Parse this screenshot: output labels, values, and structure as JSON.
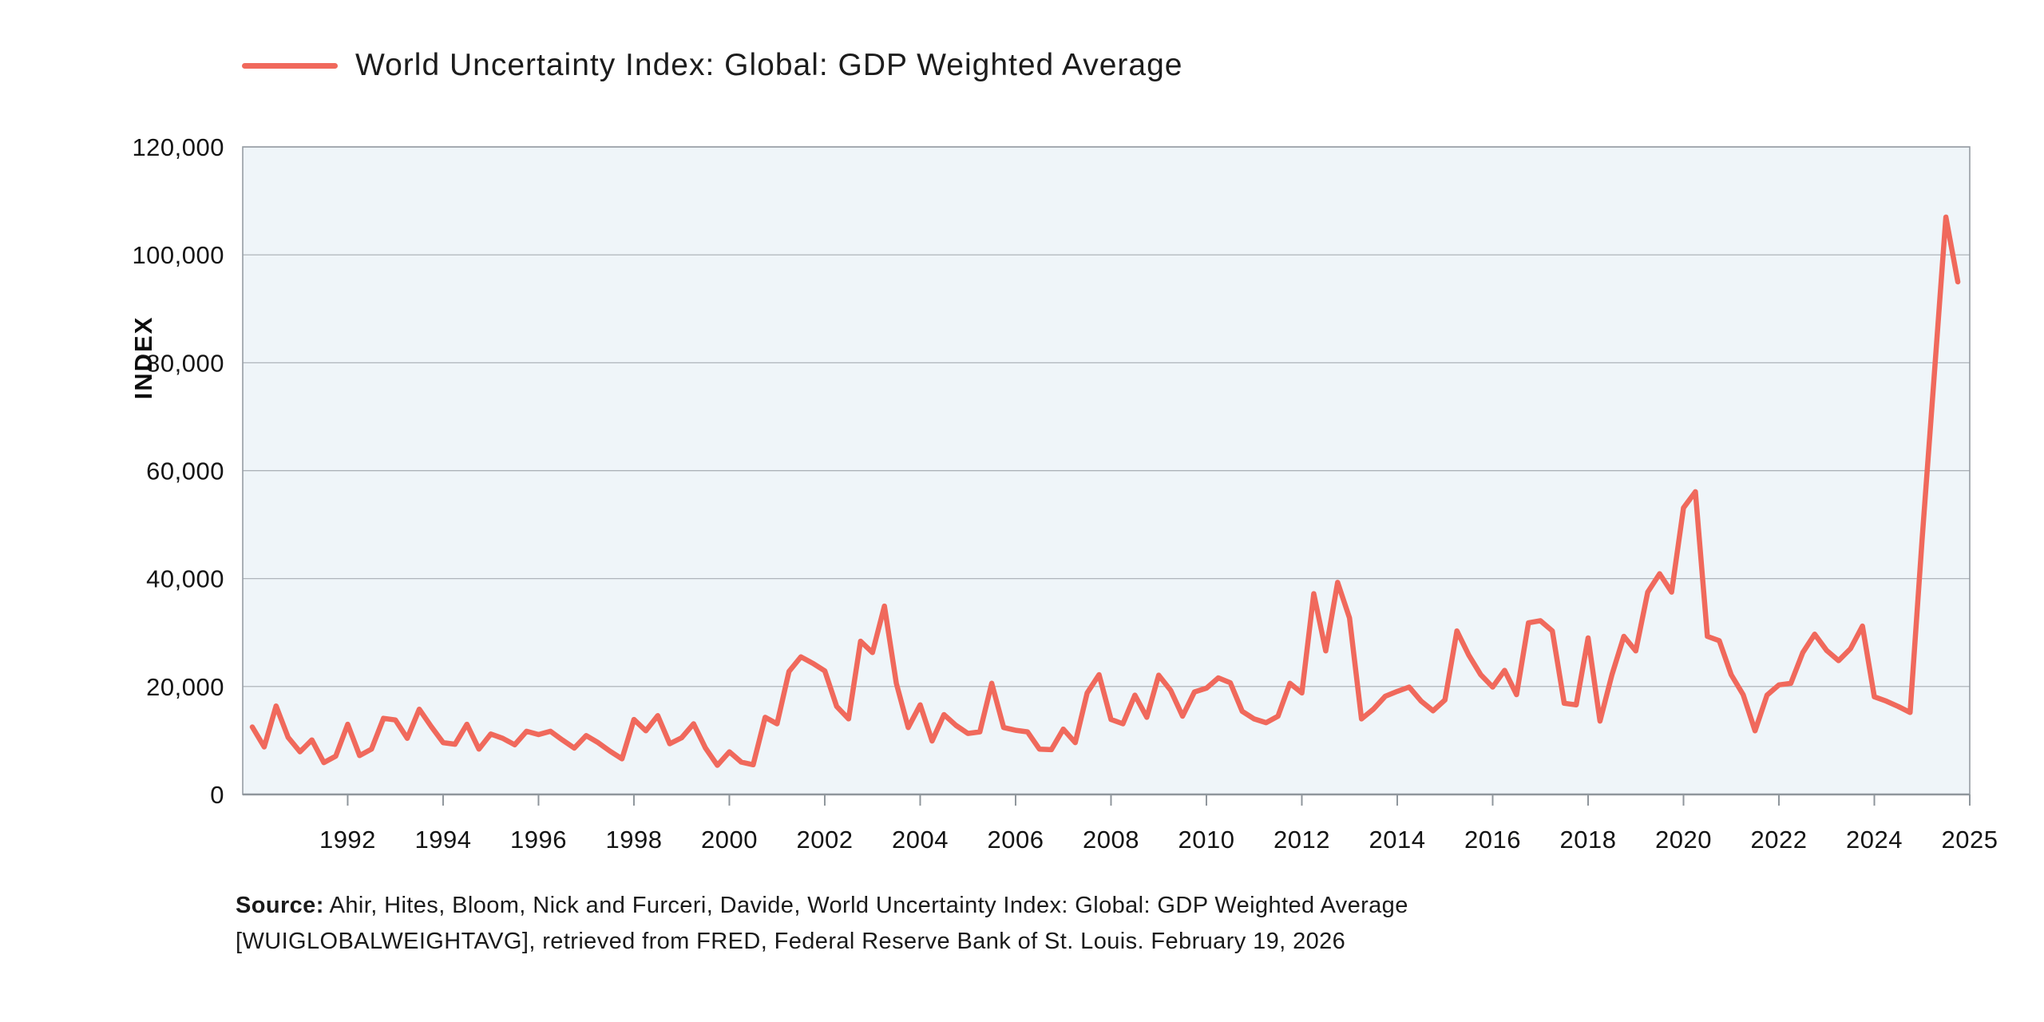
{
  "legend": {
    "label": "World Uncertainty Index: Global: GDP Weighted Average"
  },
  "y_axis": {
    "title": "INDEX",
    "tick_values": [
      0,
      20000,
      40000,
      60000,
      80000,
      100000,
      120000
    ],
    "tick_labels": [
      "0",
      "20,000",
      "40,000",
      "60,000",
      "80,000",
      "100,000",
      "120,000"
    ]
  },
  "x_axis": {
    "tick_years": [
      1992,
      1994,
      1996,
      1998,
      2000,
      2002,
      2004,
      2006,
      2008,
      2010,
      2012,
      2014,
      2016,
      2018,
      2020,
      2022,
      2024
    ],
    "end_tick_label": "2025"
  },
  "source": {
    "prefix": "Source:",
    "line1_rest": " Ahir, Hites, Bloom, Nick and Furceri, Davide, World Uncertainty Index: Global: GDP Weighted Average",
    "line2": "[WUIGLOBALWEIGHTAVG], retrieved from FRED, Federal Reserve Bank of St. Louis. February 19, 2026"
  },
  "colors": {
    "line": "#f0695c",
    "plot_background": "#eff5f9",
    "gridline": "#a7adb3",
    "plot_border": "#969da4",
    "tick_mark": "#8f969c",
    "text": "#141414"
  },
  "chart_data": {
    "type": "line",
    "title": "World Uncertainty Index: Global: GDP Weighted Average",
    "xlabel": "",
    "ylabel": "INDEX",
    "ylim": [
      0,
      120000
    ],
    "xlim": [
      1989.8,
      2026.0
    ],
    "grid": true,
    "legend_position": "top-left",
    "frequency": "quarterly",
    "start_year": 1990,
    "series": [
      {
        "name": "World Uncertainty Index: Global: GDP Weighted Average",
        "values": [
          12500,
          8800,
          16400,
          10600,
          7900,
          10100,
          5900,
          7100,
          13000,
          7200,
          8400,
          14100,
          13800,
          10400,
          15800,
          12600,
          9600,
          9300,
          13000,
          8400,
          11200,
          10400,
          9200,
          11700,
          11100,
          11700,
          10100,
          8600,
          10900,
          9600,
          8000,
          6600,
          13900,
          11800,
          14600,
          9400,
          10500,
          13100,
          8600,
          5400,
          7900,
          6000,
          5500,
          14300,
          13100,
          22800,
          25500,
          24300,
          22900,
          16300,
          14000,
          28400,
          26300,
          34900,
          20600,
          12400,
          16600,
          9900,
          14800,
          12800,
          11300,
          11600,
          20600,
          12400,
          11900,
          11600,
          8400,
          8300,
          12100,
          9600,
          18800,
          22200,
          13900,
          13100,
          18400,
          14300,
          22100,
          19300,
          14500,
          19000,
          19700,
          21600,
          20700,
          15400,
          14000,
          13300,
          14500,
          20600,
          18800,
          37200,
          26600,
          39300,
          32700,
          14000,
          15800,
          18200,
          19100,
          19900,
          17300,
          15500,
          17500,
          30300,
          25800,
          22200,
          19900,
          23000,
          18500,
          31800,
          32200,
          30300,
          16900,
          16600,
          29000,
          13600,
          22200,
          29300,
          26600,
          37500,
          40900,
          37500,
          53100,
          56100,
          29300,
          28500,
          22200,
          18500,
          11800,
          18400,
          20300,
          20600,
          26300,
          29700,
          26700,
          24800,
          27000,
          31200,
          18100,
          17300,
          16300,
          15200,
          47000,
          77000,
          107000,
          95000
        ]
      }
    ]
  }
}
